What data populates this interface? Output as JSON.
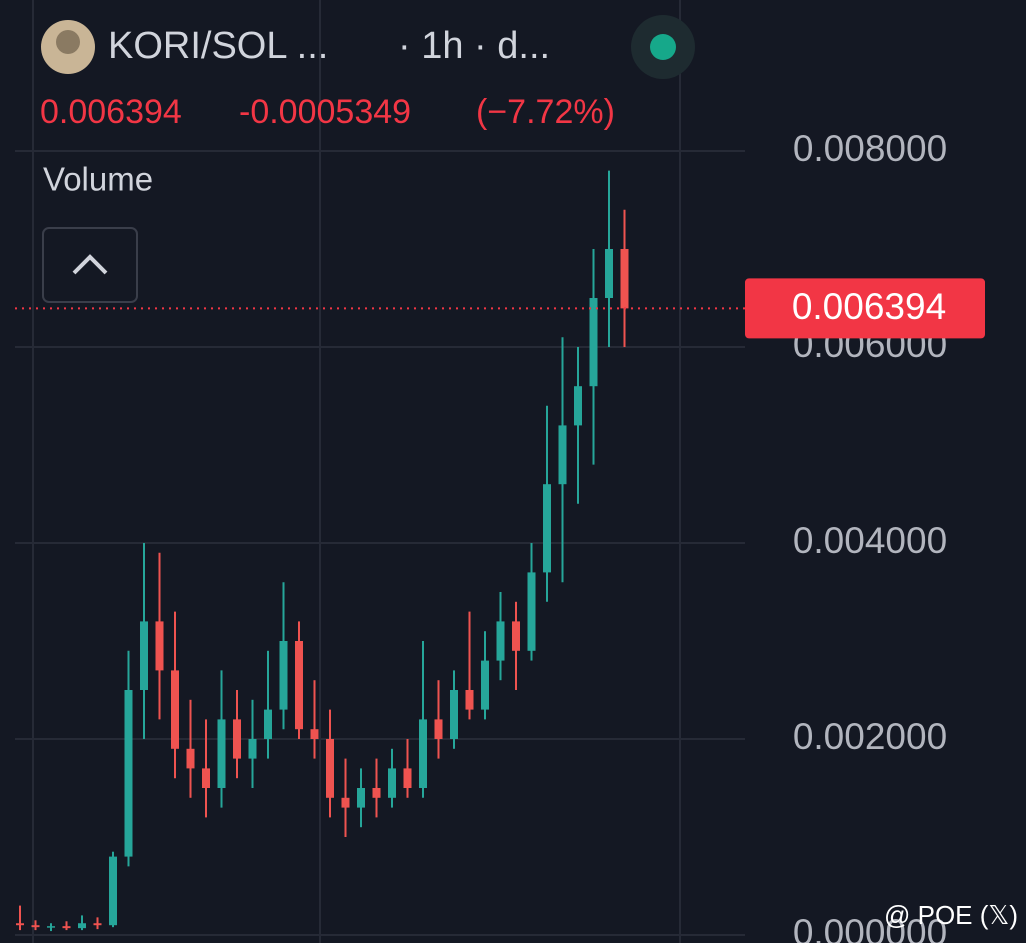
{
  "header": {
    "title": "KORI/SOL ...",
    "interval": "· 1h · d...",
    "change_percent": "(−7.72%)",
    "indicator": "Volume"
  },
  "watermark": "@ POE (𝕏)",
  "chart_data": {
    "type": "candlestick",
    "price_line": 0.006394,
    "change": -0.0005349,
    "up_color": "#26a69a",
    "down_color": "#ef5350",
    "ylim": [
      0,
      0.0095
    ],
    "yticks": [
      {
        "value": 0.008,
        "label": "0.008000"
      },
      {
        "value": 0.006,
        "label": "0.006000"
      },
      {
        "value": 0.004,
        "label": "0.004000"
      },
      {
        "value": 0.002,
        "label": "0.002000"
      },
      {
        "value": 0,
        "label": "0.000000"
      }
    ],
    "grid": true,
    "series": {
      "open": [
        0.00012,
        0.0001,
        8e-05,
        9e-05,
        7e-05,
        0.00012,
        0.0001,
        0.0008,
        0.0025,
        0.0032,
        0.0027,
        0.0019,
        0.0017,
        0.0015,
        0.0022,
        0.0018,
        0.002,
        0.0023,
        0.003,
        0.0021,
        0.002,
        0.0014,
        0.0013,
        0.0015,
        0.0014,
        0.0017,
        0.0015,
        0.0022,
        0.002,
        0.0025,
        0.0023,
        0.0028,
        0.0032,
        0.0029,
        0.0037,
        0.0046,
        0.0052,
        0.0056,
        0.0065,
        0.007
      ],
      "high": [
        0.0003,
        0.00015,
        0.00012,
        0.00014,
        0.0002,
        0.00018,
        0.00085,
        0.0029,
        0.004,
        0.0039,
        0.0033,
        0.0024,
        0.0022,
        0.0027,
        0.0025,
        0.0024,
        0.0029,
        0.0036,
        0.0032,
        0.0026,
        0.0023,
        0.0018,
        0.0017,
        0.0018,
        0.0019,
        0.002,
        0.003,
        0.0026,
        0.0027,
        0.0033,
        0.0031,
        0.0035,
        0.0034,
        0.004,
        0.0054,
        0.0061,
        0.006,
        0.007,
        0.0078,
        0.0074
      ],
      "low": [
        5e-05,
        5e-05,
        4e-05,
        5e-05,
        5e-05,
        6e-05,
        8e-05,
        0.0007,
        0.002,
        0.0022,
        0.0016,
        0.0014,
        0.0012,
        0.0013,
        0.0016,
        0.0015,
        0.0018,
        0.0021,
        0.002,
        0.0018,
        0.0012,
        0.001,
        0.0011,
        0.0012,
        0.0013,
        0.0014,
        0.0014,
        0.0018,
        0.0019,
        0.0022,
        0.0022,
        0.0026,
        0.0025,
        0.0028,
        0.0034,
        0.0036,
        0.0044,
        0.0048,
        0.006,
        0.006
      ],
      "close": [
        0.0001,
        8e-05,
        9e-05,
        7e-05,
        0.00012,
        0.0001,
        0.0008,
        0.0025,
        0.0032,
        0.0027,
        0.0019,
        0.0017,
        0.0015,
        0.0022,
        0.0018,
        0.002,
        0.0023,
        0.003,
        0.0021,
        0.002,
        0.0014,
        0.0013,
        0.0015,
        0.0014,
        0.0017,
        0.0015,
        0.0022,
        0.002,
        0.0025,
        0.0023,
        0.0028,
        0.0032,
        0.0029,
        0.0037,
        0.0046,
        0.0052,
        0.0056,
        0.0065,
        0.007,
        0.006394
      ]
    }
  }
}
